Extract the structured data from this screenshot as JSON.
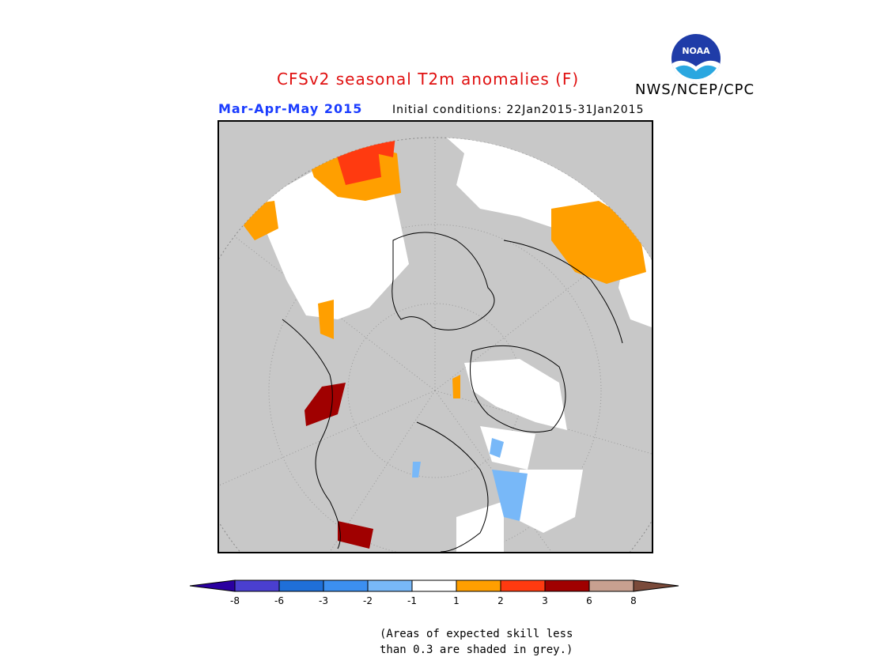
{
  "header": {
    "title": "CFSv2 seasonal T2m anomalies (F)",
    "season": "Mar-Apr-May 2015",
    "initial_conditions": "Initial conditions: 22Jan2015-31Jan2015",
    "agency": "NWS/NCEP/CPC",
    "logo_text": "NOAA"
  },
  "map": {
    "projection": "north-polar-stereographic",
    "background_color": "#c8c8c8",
    "coastline_color": "#000000"
  },
  "colorbar": {
    "tick_labels": [
      "-8",
      "-6",
      "-3",
      "-2",
      "-1",
      "1",
      "2",
      "3",
      "6",
      "8"
    ],
    "colors": [
      "#2a00a0",
      "#4a3fd0",
      "#1f6fd8",
      "#3c8ff0",
      "#78b8f8",
      "#ffffff",
      "#ff9f00",
      "#ff3a10",
      "#a00000",
      "#c8a090",
      "#7a4a3a"
    ]
  },
  "footnote": {
    "line1": "(Areas of expected skill less",
    "line2": "than 0.3 are shaded in grey.)"
  }
}
